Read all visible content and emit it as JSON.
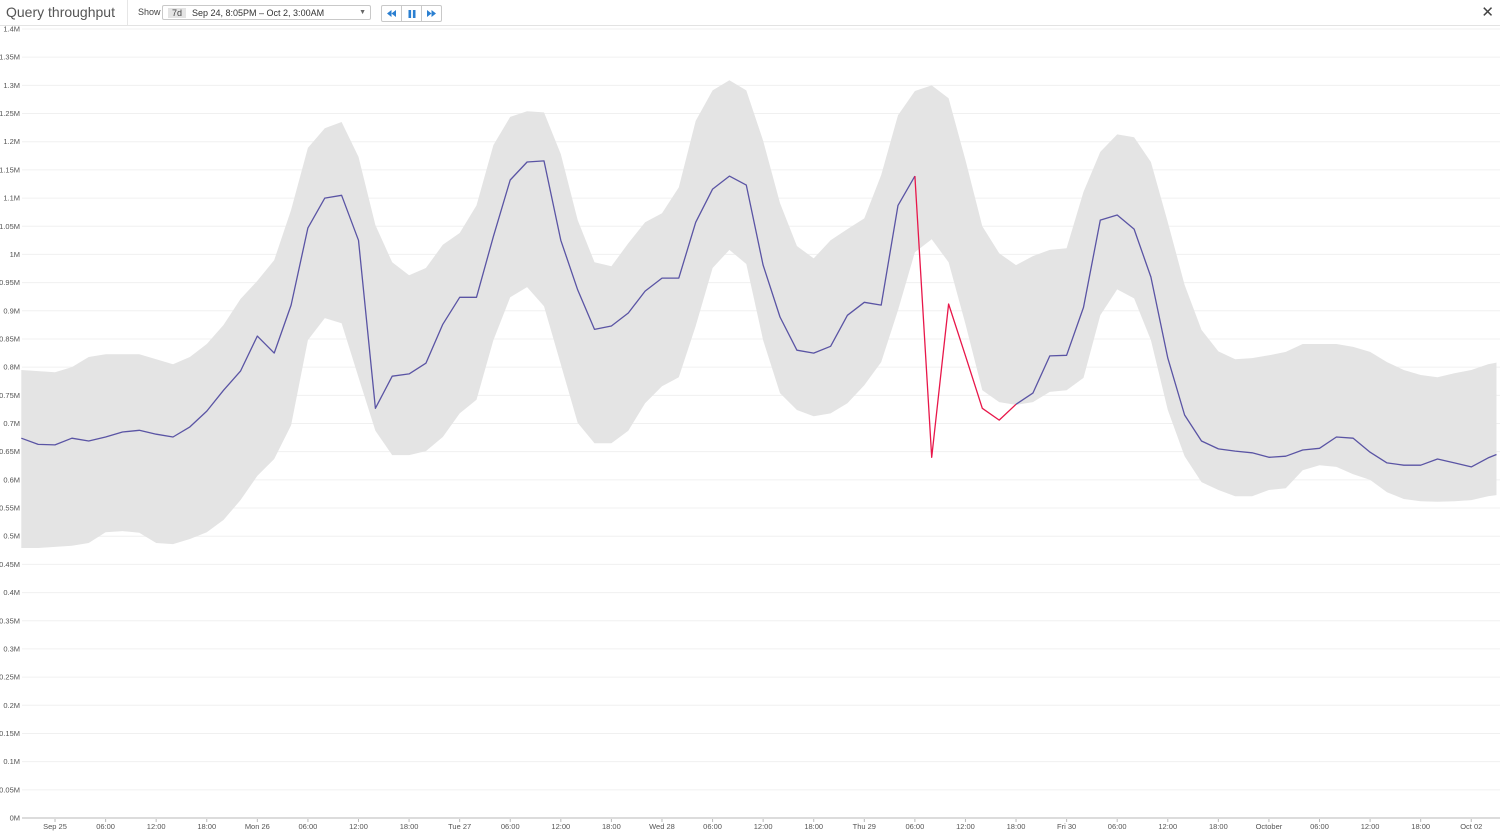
{
  "header": {
    "title": "Query throughput",
    "show_label": "Show",
    "range_badge": "7d",
    "range_text": "Sep 24, 8:05PM – Oct 2, 3:00AM",
    "controls": [
      "rewind-icon",
      "pause-icon",
      "fast-forward-icon"
    ],
    "close_icon": "close-icon"
  },
  "colors": {
    "line": "#5a54a4",
    "anomaly": "#e8174a",
    "band": "#e4e4e4",
    "grid": "#f0f0f0"
  },
  "chart_data": {
    "type": "line",
    "title": "Query throughput",
    "ylim": [
      0,
      1.4
    ],
    "y_unit": "M",
    "x_range": [
      "09-24 20:05",
      "10-02 03:00"
    ],
    "grid": "horizontal",
    "y_ticks": [
      "0M",
      "0.05M",
      "0.1M",
      "0.15M",
      "0.2M",
      "0.25M",
      "0.3M",
      "0.35M",
      "0.4M",
      "0.45M",
      "0.5M",
      "0.55M",
      "0.6M",
      "0.65M",
      "0.7M",
      "0.75M",
      "0.8M",
      "0.85M",
      "0.9M",
      "0.95M",
      "1M",
      "1.05M",
      "1.1M",
      "1.15M",
      "1.2M",
      "1.25M",
      "1.3M",
      "1.35M",
      "1.4M"
    ],
    "x_ticks": [
      [
        "09-25 00:00",
        "Sep 25"
      ],
      [
        "09-25 06:00",
        "06:00"
      ],
      [
        "09-25 12:00",
        "12:00"
      ],
      [
        "09-25 18:00",
        "18:00"
      ],
      [
        "09-26 00:00",
        "Mon 26"
      ],
      [
        "09-26 06:00",
        "06:00"
      ],
      [
        "09-26 12:00",
        "12:00"
      ],
      [
        "09-26 18:00",
        "18:00"
      ],
      [
        "09-27 00:00",
        "Tue 27"
      ],
      [
        "09-27 06:00",
        "06:00"
      ],
      [
        "09-27 12:00",
        "12:00"
      ],
      [
        "09-27 18:00",
        "18:00"
      ],
      [
        "09-28 00:00",
        "Wed 28"
      ],
      [
        "09-28 06:00",
        "06:00"
      ],
      [
        "09-28 12:00",
        "12:00"
      ],
      [
        "09-28 18:00",
        "18:00"
      ],
      [
        "09-29 00:00",
        "Thu 29"
      ],
      [
        "09-29 06:00",
        "06:00"
      ],
      [
        "09-29 12:00",
        "12:00"
      ],
      [
        "09-29 18:00",
        "18:00"
      ],
      [
        "09-30 00:00",
        "Fri 30"
      ],
      [
        "09-30 06:00",
        "06:00"
      ],
      [
        "09-30 12:00",
        "12:00"
      ],
      [
        "09-30 18:00",
        "18:00"
      ],
      [
        "10-01 00:00",
        "October"
      ],
      [
        "10-01 06:00",
        "06:00"
      ],
      [
        "10-01 12:00",
        "12:00"
      ],
      [
        "10-01 18:00",
        "18:00"
      ],
      [
        "10-02 00:00",
        "Oct 02"
      ]
    ],
    "series_fields": [
      "time",
      "value",
      "band_upper",
      "band_lower"
    ],
    "anomaly_range": [
      "09-29 06:00",
      "09-29 18:00"
    ],
    "points": [
      [
        "09-24 20:00",
        0.674,
        0.795,
        0.479
      ],
      [
        "09-24 22:00",
        0.663,
        0.793,
        0.479
      ],
      [
        "09-25 00:00",
        0.662,
        0.791,
        0.481
      ],
      [
        "09-25 02:00",
        0.674,
        0.8,
        0.483
      ],
      [
        "09-25 04:00",
        0.669,
        0.818,
        0.488
      ],
      [
        "09-25 06:00",
        0.676,
        0.823,
        0.507
      ],
      [
        "09-25 08:00",
        0.685,
        0.823,
        0.509
      ],
      [
        "09-25 10:00",
        0.688,
        0.823,
        0.506
      ],
      [
        "09-25 12:00",
        0.681,
        0.814,
        0.488
      ],
      [
        "09-25 14:00",
        0.676,
        0.805,
        0.486
      ],
      [
        "09-25 16:00",
        0.694,
        0.818,
        0.495
      ],
      [
        "09-25 18:00",
        0.722,
        0.841,
        0.507
      ],
      [
        "09-25 20:00",
        0.759,
        0.875,
        0.529
      ],
      [
        "09-25 22:00",
        0.793,
        0.921,
        0.564
      ],
      [
        "09-26 00:00",
        0.855,
        0.953,
        0.607
      ],
      [
        "09-26 02:00",
        0.825,
        0.99,
        0.637
      ],
      [
        "09-26 04:00",
        0.91,
        1.079,
        0.697
      ],
      [
        "09-26 06:00",
        1.047,
        1.189,
        0.848
      ],
      [
        "09-26 08:00",
        1.1,
        1.224,
        0.887
      ],
      [
        "09-26 10:00",
        1.105,
        1.235,
        0.878
      ],
      [
        "09-26 12:00",
        1.025,
        1.173,
        0.782
      ],
      [
        "09-26 14:00",
        0.727,
        1.052,
        0.687
      ],
      [
        "09-26 16:00",
        0.784,
        0.986,
        0.644
      ],
      [
        "09-26 18:00",
        0.788,
        0.963,
        0.644
      ],
      [
        "09-26 20:00",
        0.807,
        0.976,
        0.651
      ],
      [
        "09-26 22:00",
        0.876,
        1.017,
        0.676
      ],
      [
        "09-27 00:00",
        0.924,
        1.038,
        0.718
      ],
      [
        "09-27 02:00",
        0.924,
        1.087,
        0.742
      ],
      [
        "09-27 04:00",
        1.032,
        1.194,
        0.848
      ],
      [
        "09-27 06:00",
        1.132,
        1.244,
        0.924
      ],
      [
        "09-27 08:00",
        1.164,
        1.254,
        0.942
      ],
      [
        "09-27 10:00",
        1.166,
        1.252,
        0.908
      ],
      [
        "09-27 12:00",
        1.025,
        1.178,
        0.805
      ],
      [
        "09-27 14:00",
        0.937,
        1.061,
        0.701
      ],
      [
        "09-27 16:00",
        0.867,
        0.986,
        0.665
      ],
      [
        "09-27 18:00",
        0.873,
        0.979,
        0.665
      ],
      [
        "09-27 20:00",
        0.896,
        1.02,
        0.687
      ],
      [
        "09-27 22:00",
        0.935,
        1.057,
        0.736
      ],
      [
        "09-28 00:00",
        0.958,
        1.073,
        0.766
      ],
      [
        "09-28 02:00",
        0.958,
        1.119,
        0.782
      ],
      [
        "09-28 04:00",
        1.057,
        1.237,
        0.873
      ],
      [
        "09-28 06:00",
        1.116,
        1.291,
        0.976
      ],
      [
        "09-28 08:00",
        1.139,
        1.309,
        1.008
      ],
      [
        "09-28 10:00",
        1.123,
        1.291,
        0.983
      ],
      [
        "09-28 12:00",
        0.981,
        1.202,
        0.848
      ],
      [
        "09-28 14:00",
        0.889,
        1.091,
        0.754
      ],
      [
        "09-28 16:00",
        0.83,
        1.015,
        0.724
      ],
      [
        "09-28 18:00",
        0.825,
        0.993,
        0.713
      ],
      [
        "09-28 20:00",
        0.837,
        1.025,
        0.718
      ],
      [
        "09-28 22:00",
        0.892,
        1.045,
        0.736
      ],
      [
        "09-29 00:00",
        0.915,
        1.064,
        0.768
      ],
      [
        "09-29 02:00",
        0.91,
        1.141,
        0.809
      ],
      [
        "09-29 04:00",
        1.087,
        1.247,
        0.901
      ],
      [
        "09-29 06:00",
        1.139,
        1.29,
        1.004
      ],
      [
        "09-29 08:00",
        0.64,
        1.3,
        1.027
      ],
      [
        "09-29 10:00",
        0.912,
        1.277,
        0.986
      ],
      [
        "09-29 12:00",
        0.82,
        1.167,
        0.876
      ],
      [
        "09-29 14:00",
        0.727,
        1.05,
        0.759
      ],
      [
        "09-29 16:00",
        0.706,
        1.002,
        0.738
      ],
      [
        "09-29 18:00",
        0.734,
        0.981,
        0.733
      ],
      [
        "09-29 20:00",
        0.754,
        0.997,
        0.738
      ],
      [
        "09-29 22:00",
        0.82,
        1.008,
        0.756
      ],
      [
        "09-30 00:00",
        0.821,
        1.011,
        0.759
      ],
      [
        "09-30 02:00",
        0.906,
        1.111,
        0.781
      ],
      [
        "09-30 04:00",
        1.061,
        1.182,
        0.892
      ],
      [
        "09-30 06:00",
        1.07,
        1.213,
        0.938
      ],
      [
        "09-30 08:00",
        1.045,
        1.208,
        0.922
      ],
      [
        "09-30 10:00",
        0.96,
        1.164,
        0.848
      ],
      [
        "09-30 12:00",
        0.816,
        1.057,
        0.724
      ],
      [
        "09-30 14:00",
        0.715,
        0.946,
        0.642
      ],
      [
        "09-30 16:00",
        0.669,
        0.866,
        0.596
      ],
      [
        "09-30 18:00",
        0.655,
        0.828,
        0.582
      ],
      [
        "09-30 20:00",
        0.651,
        0.814,
        0.571
      ],
      [
        "09-30 22:00",
        0.648,
        0.816,
        0.571
      ],
      [
        "10-01 00:00",
        0.64,
        0.821,
        0.582
      ],
      [
        "10-01 02:00",
        0.642,
        0.827,
        0.585
      ],
      [
        "10-01 04:00",
        0.653,
        0.841,
        0.617
      ],
      [
        "10-01 06:00",
        0.656,
        0.841,
        0.626
      ],
      [
        "10-01 08:00",
        0.676,
        0.841,
        0.623
      ],
      [
        "10-01 10:00",
        0.674,
        0.836,
        0.61
      ],
      [
        "10-01 12:00",
        0.649,
        0.827,
        0.6
      ],
      [
        "10-01 14:00",
        0.63,
        0.809,
        0.578
      ],
      [
        "10-01 16:00",
        0.626,
        0.795,
        0.566
      ],
      [
        "10-01 18:00",
        0.626,
        0.786,
        0.562
      ],
      [
        "10-01 20:00",
        0.637,
        0.782,
        0.561
      ],
      [
        "10-01 22:00",
        0.63,
        0.789,
        0.562
      ],
      [
        "10-02 00:00",
        0.623,
        0.795,
        0.564
      ],
      [
        "10-02 02:00",
        0.639,
        0.805,
        0.571
      ],
      [
        "10-02 03:00",
        0.645,
        0.808,
        0.573
      ]
    ]
  }
}
